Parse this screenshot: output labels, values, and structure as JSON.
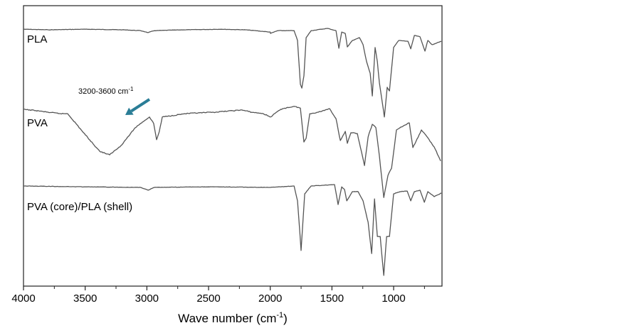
{
  "chart_data": {
    "type": "line",
    "title": "",
    "xlabel": {
      "main": "Wave number (cm",
      "sup": "-1",
      "end": ")"
    },
    "ylabel": "",
    "xlim": [
      4000,
      608
    ],
    "ylim": [
      0,
      100
    ],
    "x_reversed": true,
    "grid": false,
    "legend": "none (inline labels at left)",
    "x_ticks": [
      4000,
      3500,
      3000,
      2500,
      2000,
      1500,
      1000
    ],
    "x_tick_labels": [
      "4000",
      "3500",
      "3000",
      "2500",
      "2000",
      "1500",
      "1000"
    ],
    "x_minor_ticks": [
      3750,
      3250,
      2750,
      2250,
      1750,
      1250,
      750
    ],
    "line_color": "#555555",
    "series": [
      {
        "name": "PLA",
        "points": [
          [
            4000,
            91.6
          ],
          [
            3800,
            91.4
          ],
          [
            3500,
            91.6
          ],
          [
            3200,
            91.4
          ],
          [
            3050,
            91.1
          ],
          [
            2990,
            90.4
          ],
          [
            2940,
            91.1
          ],
          [
            2700,
            91.4
          ],
          [
            2400,
            91.6
          ],
          [
            2200,
            91.4
          ],
          [
            2000,
            90.6
          ],
          [
            1998,
            90.1
          ],
          [
            1940,
            91.1
          ],
          [
            1807,
            91.1
          ],
          [
            1779,
            87.6
          ],
          [
            1756,
            72.0
          ],
          [
            1744,
            70.6
          ],
          [
            1727,
            75.0
          ],
          [
            1709,
            88.6
          ],
          [
            1669,
            91.1
          ],
          [
            1536,
            91.9
          ],
          [
            1467,
            91.1
          ],
          [
            1444,
            84.8
          ],
          [
            1421,
            90.6
          ],
          [
            1392,
            90.1
          ],
          [
            1375,
            85.3
          ],
          [
            1334,
            87.6
          ],
          [
            1277,
            88.6
          ],
          [
            1248,
            86.1
          ],
          [
            1219,
            80.0
          ],
          [
            1190,
            75.9
          ],
          [
            1173,
            67.8
          ],
          [
            1150,
            85.1
          ],
          [
            1132,
            80.0
          ],
          [
            1115,
            72.4
          ],
          [
            1075,
            60.3
          ],
          [
            1052,
            70.9
          ],
          [
            1034,
            69.6
          ],
          [
            1000,
            85.1
          ],
          [
            959,
            87.6
          ],
          [
            884,
            87.3
          ],
          [
            861,
            84.6
          ],
          [
            832,
            89.4
          ],
          [
            786,
            88.9
          ],
          [
            746,
            83.8
          ],
          [
            723,
            87.6
          ],
          [
            688,
            86.1
          ],
          [
            613,
            87.3
          ]
        ]
      },
      {
        "name": "PVA",
        "points": [
          [
            4000,
            63.0
          ],
          [
            3900,
            62.6
          ],
          [
            3800,
            62.0
          ],
          [
            3700,
            61.5
          ],
          [
            3642,
            61.5
          ],
          [
            3498,
            53.9
          ],
          [
            3383,
            48.1
          ],
          [
            3302,
            46.8
          ],
          [
            3210,
            50.1
          ],
          [
            3094,
            56.5
          ],
          [
            3036,
            58.5
          ],
          [
            2979,
            60.3
          ],
          [
            2945,
            58.0
          ],
          [
            2921,
            52.2
          ],
          [
            2900,
            55.0
          ],
          [
            2875,
            60.3
          ],
          [
            2690,
            61.5
          ],
          [
            2460,
            62.0
          ],
          [
            2229,
            62.8
          ],
          [
            2150,
            62.0
          ],
          [
            2056,
            61.5
          ],
          [
            1998,
            60.3
          ],
          [
            1940,
            62.3
          ],
          [
            1900,
            63.3
          ],
          [
            1807,
            64.1
          ],
          [
            1756,
            63.5
          ],
          [
            1727,
            51.4
          ],
          [
            1709,
            52.7
          ],
          [
            1680,
            61.5
          ],
          [
            1611,
            62.0
          ],
          [
            1519,
            63.3
          ],
          [
            1467,
            59.7
          ],
          [
            1432,
            51.9
          ],
          [
            1392,
            55.2
          ],
          [
            1375,
            50.9
          ],
          [
            1346,
            54.7
          ],
          [
            1294,
            54.4
          ],
          [
            1236,
            43.0
          ],
          [
            1207,
            53.2
          ],
          [
            1173,
            57.7
          ],
          [
            1144,
            56.5
          ],
          [
            1115,
            46.3
          ],
          [
            1080,
            31.6
          ],
          [
            1046,
            39.5
          ],
          [
            1017,
            42.0
          ],
          [
            977,
            55.7
          ],
          [
            948,
            56.5
          ],
          [
            873,
            58.2
          ],
          [
            844,
            49.4
          ],
          [
            821,
            51.4
          ],
          [
            775,
            55.7
          ],
          [
            728,
            53.2
          ],
          [
            671,
            49.6
          ],
          [
            619,
            44.6
          ]
        ]
      },
      {
        "name": "PVA (core)/PLA (shell)",
        "points": [
          [
            4000,
            35.7
          ],
          [
            3500,
            35.4
          ],
          [
            3050,
            35.2
          ],
          [
            2990,
            34.2
          ],
          [
            2940,
            35.2
          ],
          [
            2500,
            35.4
          ],
          [
            2000,
            35.2
          ],
          [
            1807,
            35.7
          ],
          [
            1779,
            30.4
          ],
          [
            1750,
            12.7
          ],
          [
            1721,
            32.9
          ],
          [
            1669,
            35.7
          ],
          [
            1479,
            36.2
          ],
          [
            1450,
            29.1
          ],
          [
            1421,
            35.4
          ],
          [
            1398,
            34.4
          ],
          [
            1380,
            30.4
          ],
          [
            1334,
            33.7
          ],
          [
            1288,
            33.7
          ],
          [
            1248,
            30.4
          ],
          [
            1207,
            22.8
          ],
          [
            1178,
            11.6
          ],
          [
            1155,
            31.1
          ],
          [
            1132,
            17.7
          ],
          [
            1109,
            17.7
          ],
          [
            1080,
            3.8
          ],
          [
            1057,
            17.7
          ],
          [
            1034,
            17.7
          ],
          [
            1000,
            32.9
          ],
          [
            948,
            33.7
          ],
          [
            890,
            33.9
          ],
          [
            861,
            30.4
          ],
          [
            832,
            33.7
          ],
          [
            786,
            34.2
          ],
          [
            751,
            29.9
          ],
          [
            723,
            33.7
          ],
          [
            671,
            31.9
          ],
          [
            613,
            33.2
          ]
        ]
      }
    ],
    "series_labels": [
      "PLA",
      "PVA",
      "PVA (core)/PLA (shell)"
    ],
    "annotation": {
      "text": "3200-3600 cm",
      "sup": "-1",
      "arrow_color": "#2a7d96",
      "arrow_from": [
        2979,
        66.6
      ],
      "arrow_to": [
        3175,
        61.0
      ]
    }
  }
}
